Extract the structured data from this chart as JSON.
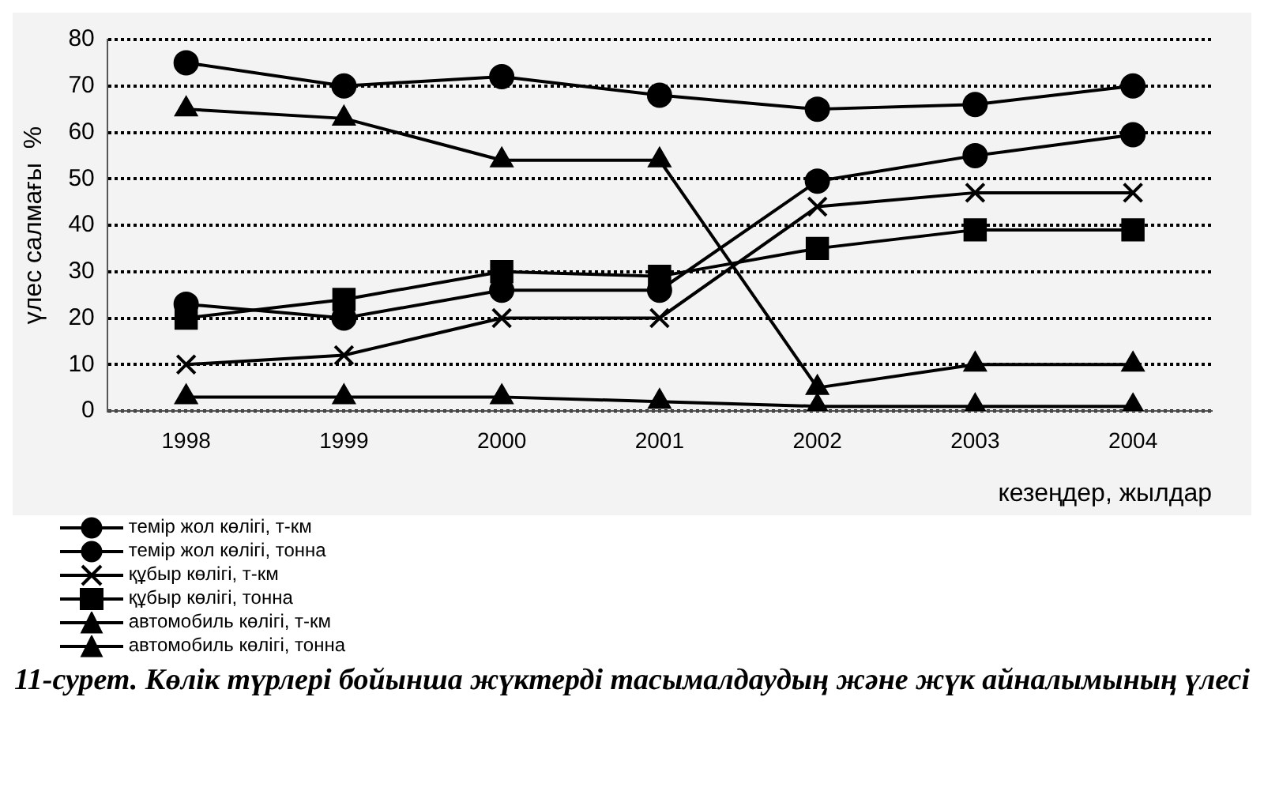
{
  "chart_data": {
    "type": "line",
    "title": "11-сурет. Көлік түрлері бойынша жүктерді тасымалдаудың және жүк айналымының үлесі",
    "xlabel": "кезеңдер, жылдар",
    "ylabel": "үлес салмағы  %",
    "categories": [
      "1998",
      "1999",
      "2000",
      "2001",
      "2002",
      "2003",
      "2004"
    ],
    "ylim": [
      0,
      80
    ],
    "yticks": [
      0,
      10,
      20,
      30,
      40,
      50,
      60,
      70,
      80
    ],
    "grid": "y",
    "legend": "bottom left",
    "line_style": "solid",
    "series": [
      {
        "name": "темір жол көлігі, т-км",
        "color": "#000000",
        "marker": "circle",
        "values": [
          75,
          70,
          72,
          68,
          65,
          66,
          70
        ]
      },
      {
        "name": "темір жол көлігі, тонна",
        "color": "#000000",
        "marker": "circle",
        "values": [
          23,
          20,
          26,
          26,
          49.5,
          55,
          59.5
        ]
      },
      {
        "name": "құбыр көлігі, т-км",
        "color": "#000000",
        "marker": "cross",
        "values": [
          10,
          12,
          20,
          20,
          44,
          47,
          47
        ]
      },
      {
        "name": "құбыр көлігі, тонна",
        "color": "#000000",
        "marker": "square",
        "values": [
          20,
          24,
          30,
          29,
          35,
          39,
          39
        ]
      },
      {
        "name": "автомобиль көлігі, т-км",
        "color": "#000000",
        "marker": "triangle",
        "values": [
          65,
          63,
          54,
          54,
          5,
          10,
          10
        ]
      },
      {
        "name": "автомобиль көлігі, тонна",
        "color": "#000000",
        "marker": "triangle",
        "values": [
          3,
          3,
          3,
          2,
          1,
          1,
          1
        ]
      }
    ]
  }
}
